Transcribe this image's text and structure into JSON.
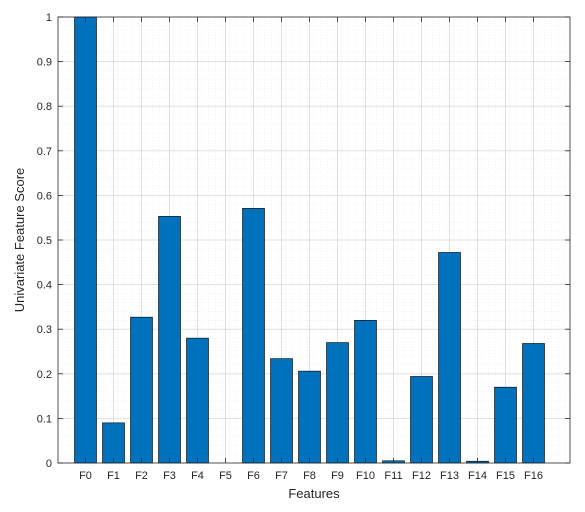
{
  "chart_data": {
    "type": "bar",
    "title": "",
    "xlabel": "Features",
    "ylabel": "Univariate Feature Score",
    "categories": [
      "F0",
      "F1",
      "F2",
      "F3",
      "F4",
      "F5",
      "F6",
      "F7",
      "F8",
      "F9",
      "F10",
      "F11",
      "F12",
      "F13",
      "F14",
      "F15",
      "F16"
    ],
    "values": [
      1.0,
      0.09,
      0.327,
      0.553,
      0.28,
      0.0,
      0.571,
      0.234,
      0.206,
      0.27,
      0.32,
      0.005,
      0.194,
      0.472,
      0.004,
      0.17,
      0.268
    ],
    "ylim": [
      0,
      1
    ],
    "yticks": [
      "0",
      "0.1",
      "0.2",
      "0.3",
      "0.4",
      "0.5",
      "0.6",
      "0.7",
      "0.8",
      "0.9",
      "1"
    ],
    "grid": true,
    "minor_grid": true,
    "bar_color": "#0072BD",
    "bar_edge_color": "#000000"
  }
}
